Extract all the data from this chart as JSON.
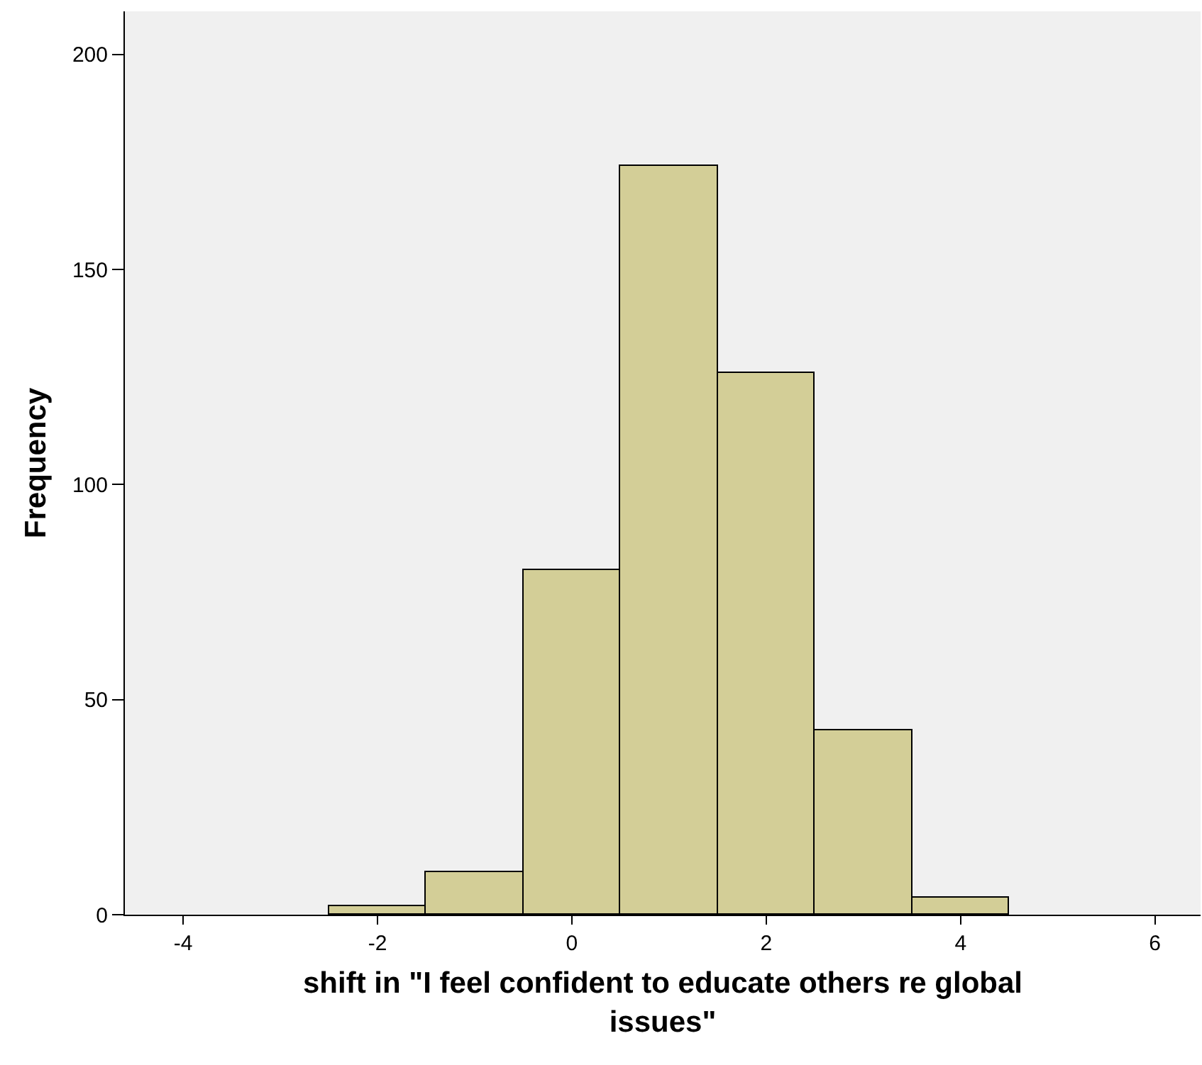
{
  "chart_data": {
    "type": "histogram",
    "xlabel": "shift in \"I feel confident to educate others re global issues\"",
    "ylabel": "Frequency",
    "bins": [
      -2.5,
      -1.5,
      -0.5,
      0.5,
      1.5,
      2.5,
      3.5,
      4.5
    ],
    "values": [
      2,
      10,
      80,
      174,
      126,
      43,
      4
    ],
    "color": "#d3ce97",
    "xlim": [
      -4.6,
      6.47
    ],
    "xticks": [
      -4,
      -2,
      0,
      2,
      4,
      6
    ],
    "ylim": [
      0,
      210
    ],
    "yticks": [
      0,
      50,
      100,
      150,
      200
    ],
    "grid": false
  }
}
